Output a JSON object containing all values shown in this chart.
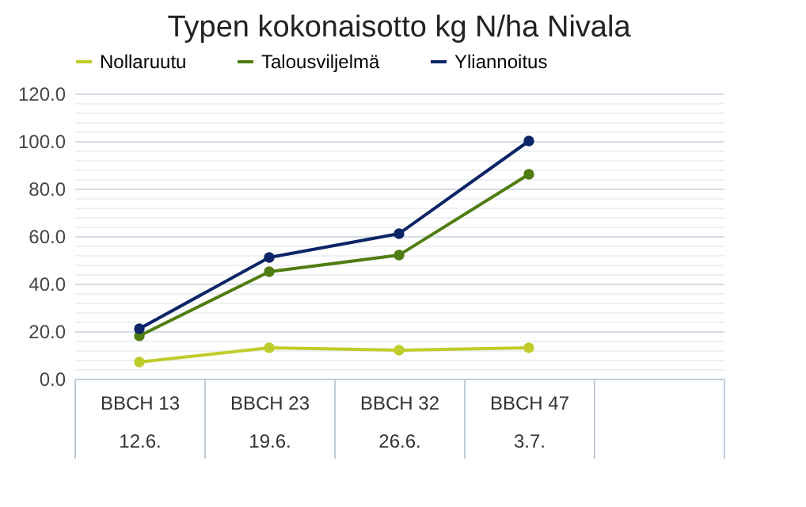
{
  "chart_data": {
    "type": "line",
    "title": "Typen kokonaisotto kg N/ha Nivala",
    "categories": [
      "BBCH 13\n12.6.",
      "BBCH 23\n19.6.",
      "BBCH 32\n26.6.",
      "BBCH 47\n3.7.",
      null
    ],
    "series": [
      {
        "name": "Nollaruutu",
        "color": "#bfcc2a",
        "values": [
          7,
          13,
          12,
          13,
          null
        ]
      },
      {
        "name": "Talousviljelmä",
        "color": "#4f7d12",
        "values": [
          18,
          45,
          52,
          86,
          null
        ]
      },
      {
        "name": "Yliannoitus",
        "color": "#0b2566",
        "values": [
          21,
          51,
          61,
          100,
          null
        ]
      }
    ],
    "ylim": [
      0,
      120
    ],
    "yticks": [
      {
        "value": 0,
        "label": "0.0"
      },
      {
        "value": 4,
        "label": null
      },
      {
        "value": 8,
        "label": null
      },
      {
        "value": 12,
        "label": null
      },
      {
        "value": 16,
        "label": null
      },
      {
        "value": 20,
        "label": "20.0"
      },
      {
        "value": 24,
        "label": null
      },
      {
        "value": 28,
        "label": null
      },
      {
        "value": 32,
        "label": null
      },
      {
        "value": 36,
        "label": null
      },
      {
        "value": 40,
        "label": "40.0"
      },
      {
        "value": 44,
        "label": null
      },
      {
        "value": 48,
        "label": null
      },
      {
        "value": 52,
        "label": null
      },
      {
        "value": 56,
        "label": null
      },
      {
        "value": 60,
        "label": "60.0"
      },
      {
        "value": 64,
        "label": null
      },
      {
        "value": 68,
        "label": null
      },
      {
        "value": 72,
        "label": null
      },
      {
        "value": 76,
        "label": null
      },
      {
        "value": 80,
        "label": "80.0"
      },
      {
        "value": 84,
        "label": null
      },
      {
        "value": 88,
        "label": null
      },
      {
        "value": 92,
        "label": null
      },
      {
        "value": 96,
        "label": null
      },
      {
        "value": 100,
        "label": "100.0"
      },
      {
        "value": 104,
        "label": null
      },
      {
        "value": 108,
        "label": null
      },
      {
        "value": 112,
        "label": null
      },
      {
        "value": 116,
        "label": null
      },
      {
        "value": 120,
        "label": "120.0"
      }
    ],
    "grid": "y",
    "legend": "top",
    "marker": "circle",
    "line_style": "solid"
  }
}
